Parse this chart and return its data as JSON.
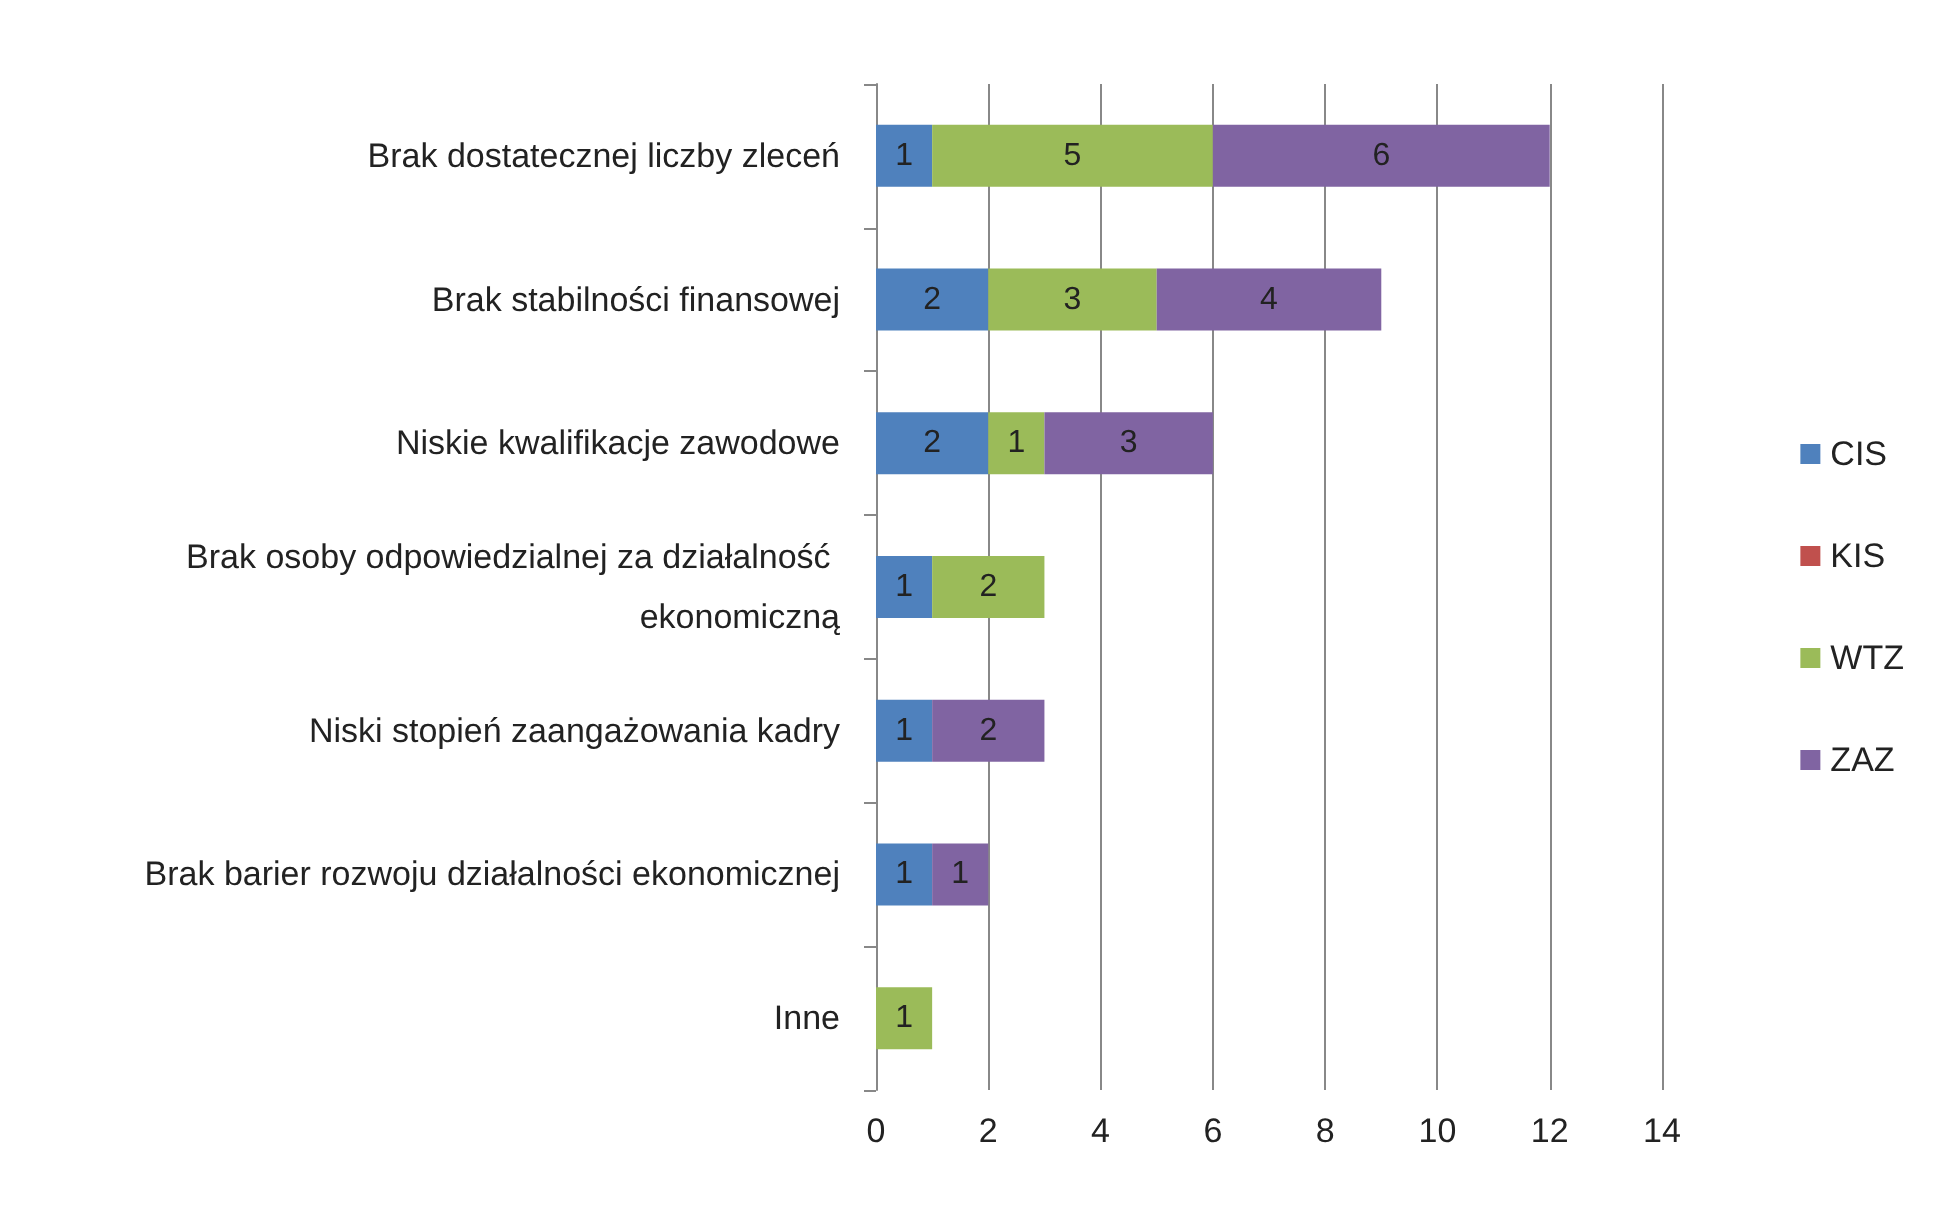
{
  "chart_data": {
    "type": "bar",
    "orientation": "horizontal",
    "stacked": true,
    "data_labels": true,
    "grid": "x",
    "legend": "right",
    "categories": [
      "Brak dostatecznej liczby zleceń",
      "Brak stabilności finansowej",
      "Niskie kwalifikacje zawodowe",
      "Brak osoby odpowiedzialnej za działalność ekonomiczną",
      "Niski stopień zaangażowania kadry",
      "Brak barier rozwoju działalności ekonomicznej",
      "Inne"
    ],
    "xlim": [
      0,
      14
    ],
    "xticks": [
      0,
      2,
      4,
      6,
      8,
      10,
      12,
      14
    ],
    "series": [
      {
        "name": "CIS",
        "color": "#4f81bd",
        "values": [
          1,
          2,
          2,
          1,
          1,
          1,
          null
        ]
      },
      {
        "name": "KIS",
        "color": "#c0504d",
        "values": [
          null,
          null,
          null,
          null,
          null,
          null,
          null
        ]
      },
      {
        "name": "WTZ",
        "color": "#9bbb59",
        "values": [
          5,
          3,
          1,
          2,
          null,
          null,
          1
        ]
      },
      {
        "name": "ZAZ",
        "color": "#8064a2",
        "values": [
          6,
          4,
          3,
          null,
          2,
          1,
          null
        ]
      }
    ]
  }
}
